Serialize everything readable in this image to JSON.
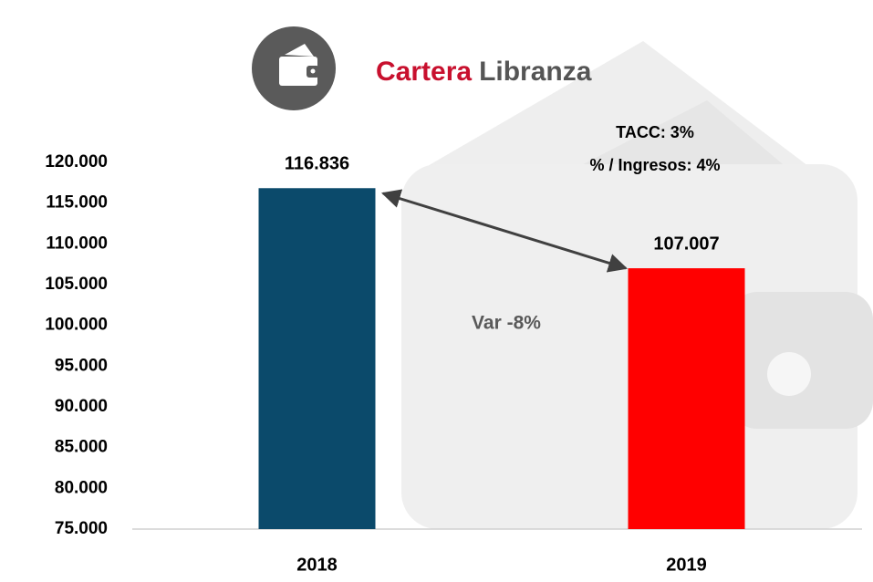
{
  "chart_data": {
    "type": "bar",
    "title": [
      "Cartera",
      "Libranza"
    ],
    "title_colors": [
      "#c8102e",
      "#555555"
    ],
    "categories": [
      "2018",
      "2019"
    ],
    "values": [
      116836,
      107007
    ],
    "value_labels": [
      "116.836",
      "107.007"
    ],
    "colors": [
      "#0b4a6b",
      "#ff0000"
    ],
    "ylim": [
      75000,
      120000
    ],
    "yticks": [
      {
        "value": 75000,
        "label": "75.000"
      },
      {
        "value": 80000,
        "label": "80.000"
      },
      {
        "value": 85000,
        "label": "85.000"
      },
      {
        "value": 90000,
        "label": "90.000"
      },
      {
        "value": 95000,
        "label": "95.000"
      },
      {
        "value": 100000,
        "label": "100.000"
      },
      {
        "value": 105000,
        "label": "105.000"
      },
      {
        "value": 110000,
        "label": "110.000"
      },
      {
        "value": 115000,
        "label": "115.000"
      },
      {
        "value": 120000,
        "label": "120.000"
      }
    ],
    "grid": false,
    "annotations": [
      "TACC: 3%",
      "% / Ingresos: 4%",
      "Var -8%"
    ]
  }
}
